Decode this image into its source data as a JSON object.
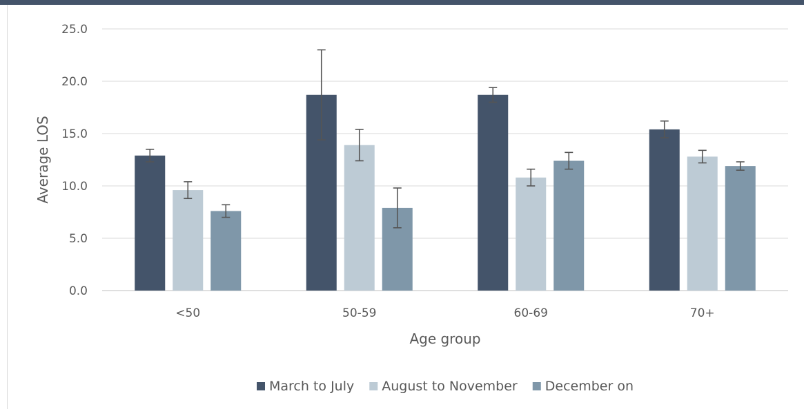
{
  "chart_data": {
    "type": "bar",
    "title": "",
    "xlabel": "Age group",
    "ylabel": "Average LOS",
    "ylim": [
      0,
      25
    ],
    "yticks": [
      "0.0",
      "5.0",
      "10.0",
      "15.0",
      "20.0",
      "25.0"
    ],
    "grid": true,
    "legend_position": "bottom",
    "categories": [
      "<50",
      "50-59",
      "60-69",
      "70+"
    ],
    "series": [
      {
        "name": "March to July",
        "color": "#44546a",
        "values": [
          12.9,
          18.7,
          18.7,
          15.4
        ],
        "error": [
          0.6,
          4.3,
          0.7,
          0.8
        ]
      },
      {
        "name": "August to November",
        "color": "#bdcbd5",
        "values": [
          9.6,
          13.9,
          10.8,
          12.8
        ],
        "error": [
          0.8,
          1.5,
          0.8,
          0.6
        ]
      },
      {
        "name": "December on",
        "color": "#7f97a9",
        "values": [
          7.6,
          7.9,
          12.4,
          11.9
        ],
        "error": [
          0.6,
          1.9,
          0.8,
          0.4
        ]
      }
    ]
  }
}
